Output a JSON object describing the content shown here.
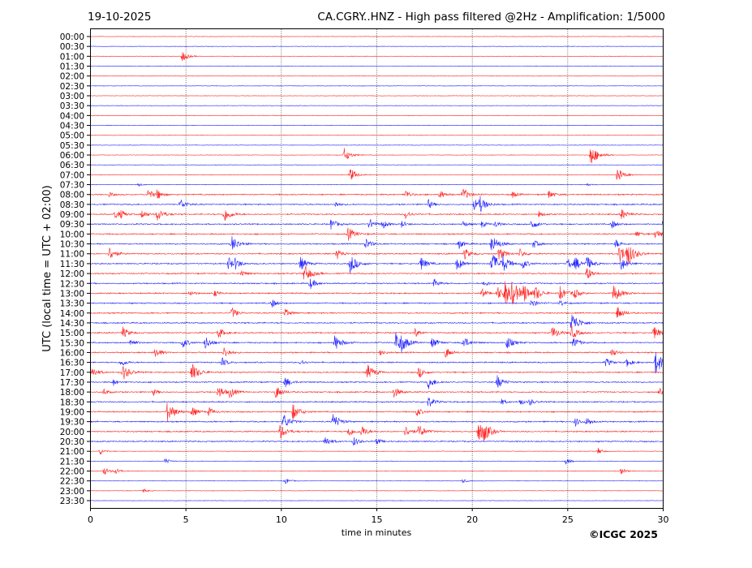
{
  "header": {
    "date": "19-10-2025",
    "title": "CA.CGRY..HNZ - High pass filtered @2Hz - Amplification: 1/5000"
  },
  "copyright": "©ICGC 2025",
  "chart_data": {
    "type": "line",
    "title": "CA.CGRY..HNZ - High pass filtered @2Hz - Amplification: 1/5000",
    "xlabel": "time in minutes",
    "ylabel": "UTC (local time = UTC + 02:00)",
    "xlim": [
      0,
      30
    ],
    "xticks": [
      "0",
      "5",
      "10",
      "15",
      "20",
      "25",
      "30"
    ],
    "grid": "vertical dotted at 5-minute intervals",
    "colors": {
      "even_rows": "#ff0000",
      "odd_rows": "#0000ff"
    },
    "rows": [
      "00:00",
      "00:30",
      "01:00",
      "01:30",
      "02:00",
      "02:30",
      "03:00",
      "03:30",
      "04:00",
      "04:30",
      "05:00",
      "05:30",
      "06:00",
      "06:30",
      "07:00",
      "07:30",
      "08:00",
      "08:30",
      "09:00",
      "09:30",
      "10:00",
      "10:30",
      "11:00",
      "11:30",
      "12:00",
      "12:30",
      "13:00",
      "13:30",
      "14:00",
      "14:30",
      "15:00",
      "15:30",
      "16:00",
      "16:30",
      "17:00",
      "17:30",
      "18:00",
      "18:30",
      "19:00",
      "19:30",
      "20:00",
      "20:30",
      "21:00",
      "21:30",
      "22:00",
      "22:30",
      "23:00",
      "23:30"
    ],
    "events": {
      "01:00": [
        [
          4.8,
          0.5
        ]
      ],
      "06:00": [
        [
          13.3,
          0.6
        ],
        [
          26.2,
          0.9
        ]
      ],
      "07:00": [
        [
          13.6,
          0.6
        ],
        [
          27.6,
          0.6
        ]
      ],
      "07:30": [
        [
          2.5,
          0.15
        ],
        [
          26,
          0.15
        ]
      ],
      "08:00": [
        [
          1.0,
          0.2
        ],
        [
          3.0,
          0.5
        ],
        [
          3.5,
          0.4
        ],
        [
          16.5,
          0.4
        ],
        [
          18.3,
          0.4
        ],
        [
          19.5,
          0.6
        ],
        [
          22.1,
          0.3
        ],
        [
          24.0,
          0.4
        ]
      ],
      "08:30": [
        [
          4.7,
          0.5
        ],
        [
          12.8,
          0.3
        ],
        [
          17.7,
          0.4
        ],
        [
          20.1,
          0.5
        ],
        [
          20.4,
          0.6
        ]
      ],
      "09:00": [
        [
          1.3,
          0.4
        ],
        [
          1.6,
          0.3
        ],
        [
          2.7,
          0.4
        ],
        [
          3.5,
          0.6
        ],
        [
          7.0,
          0.7
        ],
        [
          16.5,
          0.4
        ],
        [
          23.5,
          0.3
        ],
        [
          27.8,
          0.5
        ]
      ],
      "09:30": [
        [
          12.6,
          0.5
        ],
        [
          14.6,
          0.5
        ],
        [
          15.3,
          0.4
        ],
        [
          16.3,
          0.3
        ],
        [
          19.5,
          0.3
        ],
        [
          20.5,
          0.3
        ],
        [
          21.2,
          0.3
        ],
        [
          23.1,
          0.5
        ],
        [
          27.3,
          0.4
        ],
        [
          30.0,
          0.6
        ]
      ],
      "10:00": [
        [
          13.5,
          0.6
        ],
        [
          29.6,
          0.5
        ],
        [
          28.6,
          0.3
        ]
      ],
      "10:30": [
        [
          7.4,
          0.7
        ],
        [
          14.4,
          0.5
        ],
        [
          19.3,
          0.4
        ],
        [
          21.0,
          0.8
        ],
        [
          23.2,
          0.4
        ],
        [
          27.5,
          0.4
        ]
      ],
      "11:00": [
        [
          1.0,
          0.6
        ],
        [
          12.9,
          0.5
        ],
        [
          19.6,
          0.5
        ],
        [
          21.4,
          0.6
        ],
        [
          22.5,
          0.4
        ],
        [
          27.7,
          0.8
        ],
        [
          28.1,
          0.9
        ]
      ],
      "11:30": [
        [
          7.2,
          0.6
        ],
        [
          7.6,
          0.4
        ],
        [
          11.0,
          0.6
        ],
        [
          13.6,
          0.8
        ],
        [
          17.3,
          0.6
        ],
        [
          19.2,
          0.6
        ],
        [
          21.0,
          1.0
        ],
        [
          21.6,
          0.6
        ],
        [
          22.6,
          0.5
        ],
        [
          25.0,
          0.5
        ],
        [
          25.4,
          0.5
        ],
        [
          26.0,
          0.6
        ],
        [
          27.8,
          0.6
        ]
      ],
      "12:00": [
        [
          7.9,
          0.3
        ],
        [
          11.2,
          0.8
        ],
        [
          26.0,
          0.6
        ]
      ],
      "12:30": [
        [
          11.5,
          0.5
        ],
        [
          18.0,
          0.4
        ],
        [
          20.6,
          0.3
        ]
      ],
      "13:00": [
        [
          5.2,
          0.3
        ],
        [
          6.5,
          0.3
        ],
        [
          20.5,
          0.4
        ],
        [
          21.3,
          0.6
        ],
        [
          21.7,
          1.0
        ],
        [
          22.1,
          0.8
        ],
        [
          22.7,
          0.7
        ],
        [
          23.3,
          0.6
        ],
        [
          24.6,
          0.6
        ],
        [
          25.3,
          0.5
        ],
        [
          27.4,
          0.8
        ]
      ],
      "13:30": [
        [
          9.5,
          0.4
        ],
        [
          23.1,
          0.4
        ],
        [
          24.6,
          0.3
        ]
      ],
      "14:00": [
        [
          7.4,
          0.5
        ],
        [
          10.2,
          0.4
        ],
        [
          27.6,
          0.6
        ]
      ],
      "14:30": [
        [
          25.2,
          0.9
        ]
      ],
      "15:00": [
        [
          1.7,
          0.5
        ],
        [
          6.7,
          0.5
        ],
        [
          17.0,
          0.4
        ],
        [
          24.2,
          0.6
        ],
        [
          25.2,
          0.6
        ],
        [
          29.5,
          0.6
        ]
      ],
      "15:30": [
        [
          2.1,
          0.4
        ],
        [
          4.8,
          0.5
        ],
        [
          6.0,
          0.6
        ],
        [
          12.8,
          0.7
        ],
        [
          16.0,
          0.9
        ],
        [
          16.3,
          0.5
        ],
        [
          17.9,
          0.5
        ],
        [
          19.5,
          0.6
        ],
        [
          21.8,
          0.6
        ],
        [
          25.3,
          0.5
        ]
      ],
      "16:00": [
        [
          3.4,
          0.5
        ],
        [
          7.0,
          0.5
        ],
        [
          15.2,
          0.3
        ],
        [
          18.6,
          0.5
        ],
        [
          27.3,
          0.4
        ]
      ],
      "16:30": [
        [
          1.6,
          0.4
        ],
        [
          6.9,
          0.4
        ],
        [
          11.0,
          0.3
        ],
        [
          27.0,
          0.4
        ],
        [
          28.1,
          0.4
        ],
        [
          29.6,
          1.0
        ]
      ],
      "17:00": [
        [
          0.1,
          0.5
        ],
        [
          1.7,
          0.7
        ],
        [
          5.3,
          0.8
        ],
        [
          14.5,
          0.7
        ],
        [
          17.2,
          0.5
        ]
      ],
      "17:30": [
        [
          1.2,
          0.3
        ],
        [
          10.2,
          0.5
        ],
        [
          17.7,
          0.6
        ],
        [
          21.3,
          0.6
        ]
      ],
      "18:00": [
        [
          0.7,
          0.3
        ],
        [
          3.3,
          0.3
        ],
        [
          6.7,
          0.6
        ],
        [
          7.3,
          0.5
        ],
        [
          9.7,
          0.6
        ],
        [
          15.9,
          0.5
        ],
        [
          29.8,
          0.3
        ]
      ],
      "18:30": [
        [
          17.7,
          0.5
        ],
        [
          21.5,
          0.3
        ],
        [
          22.5,
          0.3
        ],
        [
          23.0,
          0.3
        ]
      ],
      "19:00": [
        [
          4.0,
          0.9
        ],
        [
          5.3,
          0.5
        ],
        [
          6.2,
          0.4
        ],
        [
          10.6,
          0.7
        ],
        [
          17.1,
          0.4
        ]
      ],
      "19:30": [
        [
          10.1,
          0.7
        ],
        [
          12.7,
          0.7
        ],
        [
          26.0,
          0.4
        ],
        [
          25.4,
          0.4
        ]
      ],
      "20:00": [
        [
          9.9,
          0.7
        ],
        [
          13.5,
          0.5
        ],
        [
          14.2,
          0.5
        ],
        [
          16.5,
          0.5
        ],
        [
          17.2,
          0.6
        ],
        [
          20.3,
          0.9
        ],
        [
          20.6,
          0.6
        ]
      ],
      "20:30": [
        [
          12.3,
          0.5
        ],
        [
          13.8,
          0.4
        ],
        [
          15.0,
          0.3
        ]
      ],
      "21:00": [
        [
          0.5,
          0.3
        ],
        [
          26.6,
          0.3
        ]
      ],
      "21:30": [
        [
          3.9,
          0.3
        ],
        [
          24.9,
          0.3
        ]
      ],
      "22:00": [
        [
          0.7,
          0.4
        ],
        [
          1.3,
          0.3
        ],
        [
          27.8,
          0.3
        ]
      ],
      "22:30": [
        [
          10.2,
          0.3
        ],
        [
          19.5,
          0.2
        ]
      ],
      "23:00": [
        [
          2.8,
          0.2
        ]
      ]
    }
  }
}
